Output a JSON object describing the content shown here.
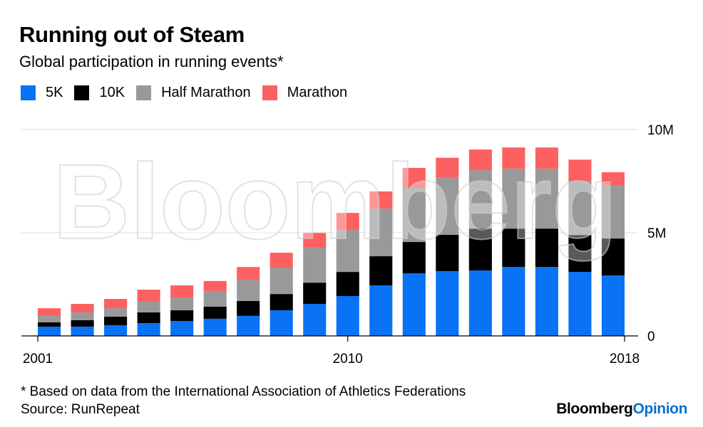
{
  "header": {
    "title": "Running out of Steam",
    "subtitle": "Global participation in running events*"
  },
  "legend": [
    {
      "label": "5K",
      "color": "#0a72f5"
    },
    {
      "label": "10K",
      "color": "#000000"
    },
    {
      "label": "Half Marathon",
      "color": "#999999"
    },
    {
      "label": "Marathon",
      "color": "#fd6061"
    }
  ],
  "footer": {
    "footnote": "* Based on data from the International Association of Athletics Federations",
    "source": "Source: RunRepeat",
    "brand_part1": "Bloomberg",
    "brand_part2": "Opinion"
  },
  "watermark": "Bloomberg",
  "chart_data": {
    "type": "bar",
    "stacked": true,
    "title": "Running out of Steam",
    "subtitle": "Global participation in running events*",
    "xlabel": "",
    "ylabel": "",
    "categories": [
      "2001",
      "2002",
      "2003",
      "2004",
      "2005",
      "2006",
      "2007",
      "2008",
      "2009",
      "2010",
      "2011",
      "2012",
      "2013",
      "2014",
      "2015",
      "2016",
      "2017",
      "2018"
    ],
    "x_tick_labels": [
      {
        "label": "2001",
        "category": "2001",
        "anchor": "left"
      },
      {
        "label": "2010",
        "category": "2010",
        "anchor": "center"
      },
      {
        "label": "2018",
        "category": "2018",
        "anchor": "right"
      }
    ],
    "y_ticks": [
      {
        "value": 0,
        "label": "0"
      },
      {
        "value": 5000000,
        "label": "5M"
      },
      {
        "value": 10000000,
        "label": "10M"
      }
    ],
    "ylim": [
      0,
      10000000
    ],
    "y_axis_position": "right",
    "grid": true,
    "legend_position": "top-left",
    "series": [
      {
        "name": "5K",
        "color": "#0a72f5",
        "values": [
          450000,
          450000,
          520000,
          620000,
          720000,
          830000,
          970000,
          1240000,
          1550000,
          1930000,
          2450000,
          3030000,
          3140000,
          3170000,
          3340000,
          3340000,
          3100000,
          2930000
        ]
      },
      {
        "name": "10K",
        "color": "#000000",
        "values": [
          210000,
          310000,
          410000,
          520000,
          520000,
          590000,
          720000,
          790000,
          1030000,
          1170000,
          1410000,
          1520000,
          1760000,
          2030000,
          1860000,
          1860000,
          1790000,
          1790000
        ]
      },
      {
        "name": "Half Marathon",
        "color": "#999999",
        "values": [
          340000,
          380000,
          410000,
          550000,
          620000,
          760000,
          1030000,
          1280000,
          1690000,
          2030000,
          2310000,
          2620000,
          2760000,
          2830000,
          2900000,
          2900000,
          2620000,
          2590000
        ]
      },
      {
        "name": "Marathon",
        "color": "#fd6061",
        "values": [
          340000,
          410000,
          450000,
          550000,
          590000,
          480000,
          620000,
          720000,
          720000,
          830000,
          830000,
          970000,
          970000,
          1000000,
          1030000,
          1030000,
          1030000,
          620000
        ]
      }
    ]
  }
}
